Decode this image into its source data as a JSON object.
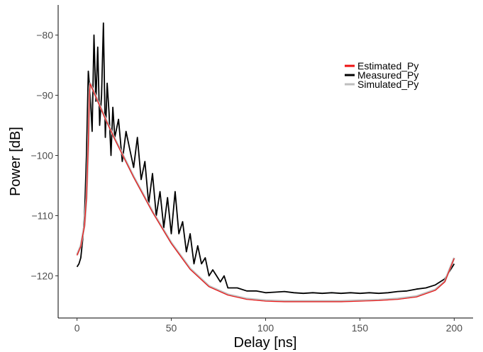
{
  "chart_data": {
    "type": "line",
    "title": "",
    "xlabel": "Delay [ns]",
    "ylabel": "Power [dB]",
    "xlim": [
      -10,
      210
    ],
    "ylim": [
      -127,
      -75
    ],
    "xticks": [
      0,
      50,
      100,
      150,
      200
    ],
    "yticks": [
      -80,
      -90,
      -100,
      -110,
      -120
    ],
    "x_tick_labels": [
      "0",
      "50",
      "100",
      "150",
      "200"
    ],
    "y_tick_labels": [
      "−80",
      "−90",
      "−100",
      "−110",
      "−120"
    ],
    "grid": false,
    "legend_position": "top-right",
    "series": [
      {
        "name": "Measured_Py",
        "color": "#000000",
        "x": [
          0,
          1,
          2,
          3,
          4,
          5,
          6,
          7,
          8,
          9,
          10,
          11,
          12,
          13,
          14,
          15,
          16,
          17,
          18,
          19,
          20,
          22,
          24,
          26,
          28,
          30,
          32,
          34,
          36,
          38,
          40,
          42,
          44,
          46,
          48,
          50,
          52,
          54,
          56,
          58,
          60,
          62,
          64,
          66,
          68,
          70,
          72,
          74,
          76,
          78,
          80,
          85,
          90,
          95,
          100,
          105,
          110,
          115,
          120,
          125,
          130,
          135,
          140,
          145,
          150,
          155,
          160,
          165,
          170,
          175,
          180,
          185,
          190,
          195,
          198,
          200
        ],
        "y": [
          -118.5,
          -118,
          -117,
          -114,
          -110,
          -100,
          -86,
          -90,
          -96,
          -80,
          -91,
          -82,
          -95,
          -90,
          -78,
          -97,
          -88,
          -93,
          -100,
          -92,
          -97,
          -94,
          -101,
          -96,
          -99,
          -102,
          -97,
          -104,
          -101,
          -108,
          -103,
          -110,
          -106,
          -112,
          -107,
          -113,
          -106,
          -113,
          -111,
          -116,
          -113,
          -118,
          -115,
          -118,
          -117,
          -120,
          -119,
          -120,
          -121,
          -120,
          -122,
          -122,
          -122.5,
          -122.5,
          -122.8,
          -122.7,
          -122.6,
          -122.8,
          -122.9,
          -122.8,
          -122.9,
          -122.8,
          -122.9,
          -122.8,
          -122.9,
          -122.8,
          -122.9,
          -122.8,
          -122.6,
          -122.5,
          -122.2,
          -122,
          -121.5,
          -120.5,
          -119,
          -118
        ]
      },
      {
        "name": "Simulated_Py",
        "color": "#bebebe",
        "x": [
          0,
          2,
          4,
          5,
          6,
          6.5,
          7,
          10,
          15,
          20,
          30,
          40,
          50,
          60,
          70,
          80,
          90,
          100,
          110,
          120,
          130,
          140,
          150,
          160,
          170,
          180,
          190,
          195,
          200
        ],
        "y": [
          -116.5,
          -115,
          -111.5,
          -107,
          -98,
          -90,
          -88,
          -90.2,
          -93.8,
          -97.2,
          -103.5,
          -109.3,
          -114.5,
          -118.8,
          -121.7,
          -123.1,
          -123.8,
          -124.1,
          -124.2,
          -124.2,
          -124.2,
          -124.2,
          -124.1,
          -124,
          -123.8,
          -123.4,
          -122.3,
          -120.9,
          -117
        ]
      },
      {
        "name": "Estimated_Py",
        "color": "#ee1111",
        "x": [
          0,
          2,
          4,
          5,
          6,
          6.5,
          7,
          10,
          15,
          20,
          30,
          40,
          50,
          60,
          70,
          80,
          90,
          100,
          110,
          120,
          130,
          140,
          150,
          160,
          170,
          180,
          190,
          195,
          200
        ],
        "y": [
          -116.6,
          -115.1,
          -111.6,
          -107.1,
          -98.1,
          -90.1,
          -88.1,
          -90.3,
          -93.9,
          -97.3,
          -103.6,
          -109.4,
          -114.6,
          -118.9,
          -121.8,
          -123.2,
          -123.9,
          -124.2,
          -124.3,
          -124.3,
          -124.3,
          -124.3,
          -124.2,
          -124.1,
          -123.9,
          -123.5,
          -122.4,
          -121,
          -117.1
        ]
      }
    ],
    "legend_order": [
      "Estimated_Py",
      "Measured_Py",
      "Simulated_Py"
    ]
  }
}
